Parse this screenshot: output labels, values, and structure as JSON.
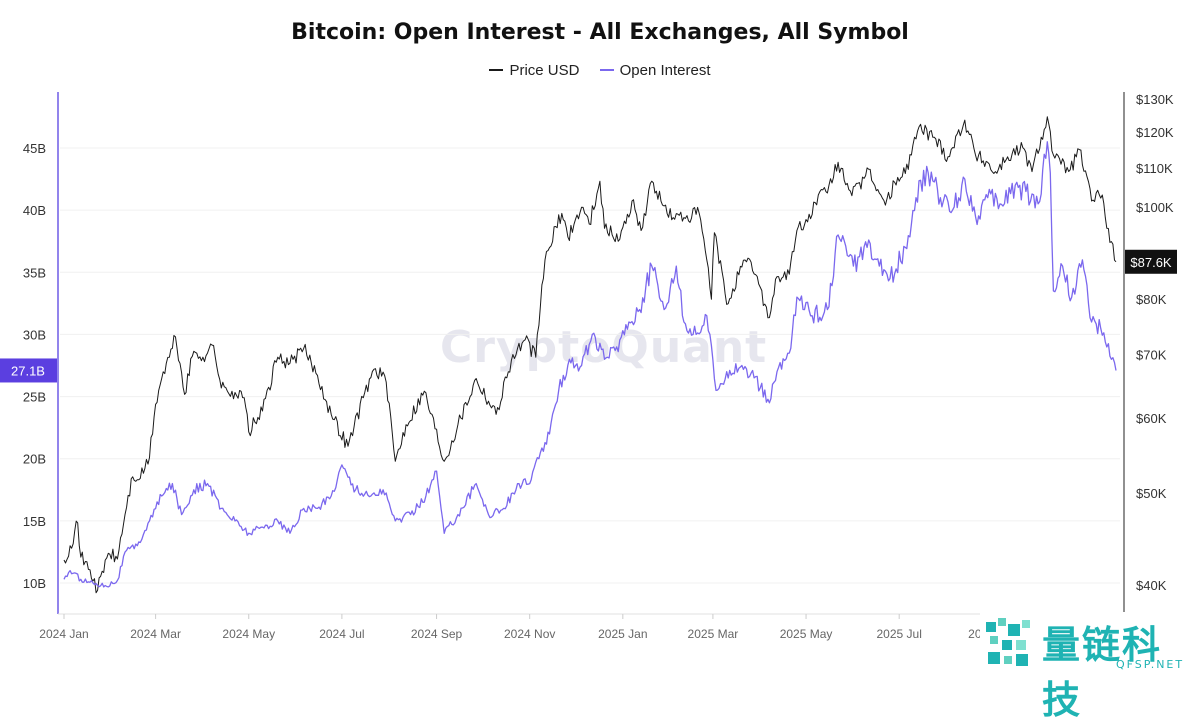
{
  "chart_data": {
    "type": "line",
    "title": "Bitcoin: Open Interest - All Exchanges, All Symbol",
    "legend": [
      "Price USD",
      "Open Interest"
    ],
    "legend_placement": "top-center",
    "x_ticks": [
      "2024 Jan",
      "2024 Mar",
      "2024 May",
      "2024 Jul",
      "2024 Sep",
      "2024 Nov",
      "2025 Jan",
      "2025 Mar",
      "2025 May",
      "2025 Jul",
      "2025 Sep"
    ],
    "x_range": [
      "2024-01-01",
      "2025-11-20"
    ],
    "left_axis": {
      "label": "",
      "ticks": [
        "10B",
        "15B",
        "20B",
        "25B",
        "30B",
        "35B",
        "40B",
        "45B"
      ],
      "range": [
        8,
        50
      ]
    },
    "right_axis": {
      "label": "",
      "scale": "log",
      "ticks": [
        "$40K",
        "$50K",
        "$60K",
        "$70K",
        "$80K",
        "$100K",
        "$110K",
        "$120K",
        "$130K"
      ],
      "range": [
        37000,
        130000
      ]
    },
    "current_oi_label": "27.1B",
    "current_price_label": "$87.6K",
    "grid": "horizontal",
    "series": [
      {
        "name": "Price USD",
        "axis": "right",
        "color": "#1a1a1a",
        "points": [
          [
            "2024-01-01",
            42500
          ],
          [
            "2024-01-05",
            44000
          ],
          [
            "2024-01-10",
            46500
          ],
          [
            "2024-01-12",
            42800
          ],
          [
            "2024-01-18",
            41500
          ],
          [
            "2024-01-23",
            39500
          ],
          [
            "2024-01-30",
            43200
          ],
          [
            "2024-02-05",
            42600
          ],
          [
            "2024-02-10",
            47500
          ],
          [
            "2024-02-15",
            52000
          ],
          [
            "2024-02-20",
            51800
          ],
          [
            "2024-02-26",
            54500
          ],
          [
            "2024-03-01",
            62000
          ],
          [
            "2024-03-05",
            66000
          ],
          [
            "2024-03-10",
            69500
          ],
          [
            "2024-03-14",
            73000
          ],
          [
            "2024-03-20",
            63500
          ],
          [
            "2024-03-26",
            70500
          ],
          [
            "2024-04-01",
            69500
          ],
          [
            "2024-04-08",
            71500
          ],
          [
            "2024-04-13",
            64500
          ],
          [
            "2024-04-20",
            64000
          ],
          [
            "2024-04-28",
            63000
          ],
          [
            "2024-05-01",
            58000
          ],
          [
            "2024-05-10",
            61000
          ],
          [
            "2024-05-20",
            69500
          ],
          [
            "2024-05-28",
            68500
          ],
          [
            "2024-06-06",
            71000
          ],
          [
            "2024-06-15",
            66500
          ],
          [
            "2024-06-24",
            60500
          ],
          [
            "2024-07-05",
            56000
          ],
          [
            "2024-07-15",
            63000
          ],
          [
            "2024-07-22",
            67500
          ],
          [
            "2024-07-29",
            66500
          ],
          [
            "2024-08-05",
            54000
          ],
          [
            "2024-08-12",
            59000
          ],
          [
            "2024-08-24",
            64000
          ],
          [
            "2024-09-06",
            54000
          ],
          [
            "2024-09-15",
            59000
          ],
          [
            "2024-09-27",
            66000
          ],
          [
            "2024-10-10",
            60500
          ],
          [
            "2024-10-20",
            69000
          ],
          [
            "2024-10-29",
            72500
          ],
          [
            "2024-11-05",
            69500
          ],
          [
            "2024-11-11",
            88000
          ],
          [
            "2024-11-13",
            90000
          ],
          [
            "2024-11-22",
            98500
          ],
          [
            "2024-11-26",
            93000
          ],
          [
            "2024-12-05",
            100000
          ],
          [
            "2024-12-10",
            96000
          ],
          [
            "2024-12-17",
            106500
          ],
          [
            "2024-12-20",
            95000
          ],
          [
            "2024-12-30",
            92500
          ],
          [
            "2025-01-07",
            101500
          ],
          [
            "2025-01-13",
            94500
          ],
          [
            "2025-01-20",
            106500
          ],
          [
            "2025-01-27",
            100500
          ],
          [
            "2025-02-03",
            97500
          ],
          [
            "2025-02-10",
            97500
          ],
          [
            "2025-02-20",
            98500
          ],
          [
            "2025-02-25",
            88000
          ],
          [
            "2025-02-28",
            80000
          ],
          [
            "2025-03-02",
            94000
          ],
          [
            "2025-03-10",
            79000
          ],
          [
            "2025-03-20",
            86500
          ],
          [
            "2025-03-26",
            87500
          ],
          [
            "2025-04-07",
            76500
          ],
          [
            "2025-04-12",
            84500
          ],
          [
            "2025-04-20",
            85000
          ],
          [
            "2025-04-25",
            94500
          ],
          [
            "2025-05-02",
            96500
          ],
          [
            "2025-05-09",
            103000
          ],
          [
            "2025-05-15",
            103500
          ],
          [
            "2025-05-22",
            111500
          ],
          [
            "2025-05-30",
            104000
          ],
          [
            "2025-06-06",
            104500
          ],
          [
            "2025-06-10",
            110000
          ],
          [
            "2025-06-22",
            100500
          ],
          [
            "2025-06-30",
            107500
          ],
          [
            "2025-07-05",
            108500
          ],
          [
            "2025-07-14",
            121500
          ],
          [
            "2025-07-24",
            118500
          ],
          [
            "2025-08-02",
            113000
          ],
          [
            "2025-08-13",
            123500
          ],
          [
            "2025-08-20",
            113500
          ],
          [
            "2025-08-28",
            111500
          ],
          [
            "2025-09-01",
            108500
          ],
          [
            "2025-09-10",
            113000
          ],
          [
            "2025-09-20",
            115500
          ],
          [
            "2025-09-26",
            109000
          ],
          [
            "2025-10-06",
            124500
          ],
          [
            "2025-10-10",
            113500
          ],
          [
            "2025-10-15",
            111000
          ],
          [
            "2025-10-21",
            109500
          ],
          [
            "2025-10-27",
            115000
          ],
          [
            "2025-11-04",
            101500
          ],
          [
            "2025-11-07",
            103500
          ],
          [
            "2025-11-11",
            103000
          ],
          [
            "2025-11-14",
            95000
          ],
          [
            "2025-11-17",
            92000
          ],
          [
            "2025-11-20",
            87600
          ]
        ]
      },
      {
        "name": "Open Interest",
        "axis": "left",
        "color": "#7b68ee",
        "points": [
          [
            "2024-01-01",
            10.3
          ],
          [
            "2024-01-05",
            11.0
          ],
          [
            "2024-01-12",
            10.3
          ],
          [
            "2024-01-20",
            10.0
          ],
          [
            "2024-01-28",
            9.8
          ],
          [
            "2024-02-05",
            10.2
          ],
          [
            "2024-02-10",
            12.5
          ],
          [
            "2024-02-18",
            13.0
          ],
          [
            "2024-02-26",
            15.0
          ],
          [
            "2024-03-05",
            17.0
          ],
          [
            "2024-03-12",
            18.0
          ],
          [
            "2024-03-18",
            15.5
          ],
          [
            "2024-03-26",
            17.5
          ],
          [
            "2024-04-04",
            18.0
          ],
          [
            "2024-04-13",
            16.0
          ],
          [
            "2024-04-22",
            15.0
          ],
          [
            "2024-05-01",
            14.0
          ],
          [
            "2024-05-10",
            14.5
          ],
          [
            "2024-05-20",
            15.0
          ],
          [
            "2024-05-28",
            14.0
          ],
          [
            "2024-06-06",
            16.0
          ],
          [
            "2024-06-15",
            16.0
          ],
          [
            "2024-06-24",
            17.0
          ],
          [
            "2024-07-01",
            19.5
          ],
          [
            "2024-07-10",
            17.5
          ],
          [
            "2024-07-20",
            17.0
          ],
          [
            "2024-07-28",
            17.5
          ],
          [
            "2024-08-05",
            15.0
          ],
          [
            "2024-08-15",
            15.5
          ],
          [
            "2024-08-25",
            17.0
          ],
          [
            "2024-09-01",
            19.0
          ],
          [
            "2024-09-06",
            14.0
          ],
          [
            "2024-09-15",
            15.5
          ],
          [
            "2024-09-27",
            18.0
          ],
          [
            "2024-10-05",
            15.5
          ],
          [
            "2024-10-15",
            16.0
          ],
          [
            "2024-10-25",
            18.0
          ],
          [
            "2024-11-01",
            18.0
          ],
          [
            "2024-11-08",
            20.5
          ],
          [
            "2024-11-14",
            22.0
          ],
          [
            "2024-11-20",
            25.5
          ],
          [
            "2024-11-27",
            28.0
          ],
          [
            "2024-12-05",
            27.5
          ],
          [
            "2024-12-12",
            30.0
          ],
          [
            "2024-12-20",
            28.0
          ],
          [
            "2024-12-28",
            29.0
          ],
          [
            "2025-01-05",
            31.0
          ],
          [
            "2025-01-12",
            32.0
          ],
          [
            "2025-01-20",
            35.5
          ],
          [
            "2025-01-28",
            32.0
          ],
          [
            "2025-02-05",
            35.5
          ],
          [
            "2025-02-10",
            31.0
          ],
          [
            "2025-02-18",
            30.0
          ],
          [
            "2025-02-25",
            31.5
          ],
          [
            "2025-03-03",
            25.5
          ],
          [
            "2025-03-10",
            27.0
          ],
          [
            "2025-03-20",
            27.5
          ],
          [
            "2025-03-28",
            26.5
          ],
          [
            "2025-04-07",
            24.5
          ],
          [
            "2025-04-12",
            27.0
          ],
          [
            "2025-04-20",
            28.5
          ],
          [
            "2025-04-25",
            33.0
          ],
          [
            "2025-05-05",
            31.5
          ],
          [
            "2025-05-15",
            32.0
          ],
          [
            "2025-05-22",
            38.0
          ],
          [
            "2025-06-01",
            35.5
          ],
          [
            "2025-06-10",
            37.0
          ],
          [
            "2025-06-18",
            35.5
          ],
          [
            "2025-06-25",
            34.5
          ],
          [
            "2025-07-05",
            37.0
          ],
          [
            "2025-07-12",
            41.0
          ],
          [
            "2025-07-20",
            43.0
          ],
          [
            "2025-07-28",
            41.0
          ],
          [
            "2025-08-05",
            40.0
          ],
          [
            "2025-08-13",
            42.5
          ],
          [
            "2025-08-20",
            39.5
          ],
          [
            "2025-08-28",
            41.0
          ],
          [
            "2025-09-05",
            40.5
          ],
          [
            "2025-09-15",
            42.0
          ],
          [
            "2025-09-22",
            41.5
          ],
          [
            "2025-09-30",
            40.5
          ],
          [
            "2025-10-06",
            45.5
          ],
          [
            "2025-10-08",
            43.0
          ],
          [
            "2025-10-10",
            33.5
          ],
          [
            "2025-10-16",
            35.5
          ],
          [
            "2025-10-22",
            33.0
          ],
          [
            "2025-10-29",
            36.0
          ],
          [
            "2025-11-04",
            31.0
          ],
          [
            "2025-11-10",
            30.5
          ],
          [
            "2025-11-14",
            29.0
          ],
          [
            "2025-11-17",
            28.0
          ],
          [
            "2025-11-20",
            27.1
          ]
        ]
      }
    ]
  },
  "watermark": "CryptoQuant",
  "branding": {
    "name_cn": "量链科技",
    "site": "QFSP.NET",
    "accent": "#1fb3b3"
  }
}
